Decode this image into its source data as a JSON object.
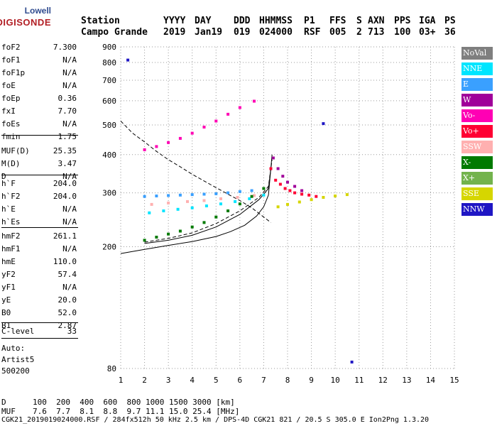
{
  "logo": {
    "line1": "Lowell",
    "line2": "DIGISONDE"
  },
  "header": {
    "columns": [
      {
        "label": "Station",
        "value": "Campo Grande"
      },
      {
        "label": "YYYY",
        "value": "2019"
      },
      {
        "label": "DAY",
        "value": "Jan19"
      },
      {
        "label": "DDD",
        "value": "019"
      },
      {
        "label": "HHMMSS",
        "value": "024000"
      },
      {
        "label": "P1",
        "value": "RSF"
      },
      {
        "label": "FFS",
        "value": "005"
      },
      {
        "label": "S",
        "value": "2"
      },
      {
        "label": "AXN",
        "value": "713"
      },
      {
        "label": "PPS",
        "value": "100"
      },
      {
        "label": "IGA",
        "value": "03+"
      },
      {
        "label": "PS",
        "value": "36"
      }
    ]
  },
  "params": {
    "group1": [
      {
        "name": "foF2",
        "value": "7.300"
      },
      {
        "name": "foF1",
        "value": "N/A"
      },
      {
        "name": "foF1p",
        "value": "N/A"
      },
      {
        "name": "foE",
        "value": "N/A"
      },
      {
        "name": "foEp",
        "value": "0.36"
      },
      {
        "name": "fxI",
        "value": "7.70"
      },
      {
        "name": "foEs",
        "value": "N/A"
      },
      {
        "name": "fmin",
        "value": "1.75"
      }
    ],
    "group2": [
      {
        "name": "MUF(D)",
        "value": "25.35"
      },
      {
        "name": "M(D)",
        "value": "3.47"
      },
      {
        "name": "D",
        "value": "N/A"
      }
    ],
    "group3": [
      {
        "name": "h`F",
        "value": "204.0"
      },
      {
        "name": "h`F2",
        "value": "204.0"
      },
      {
        "name": "h`E",
        "value": "N/A"
      },
      {
        "name": "h`Es",
        "value": "N/A"
      }
    ],
    "group4": [
      {
        "name": "hmF2",
        "value": "261.1"
      },
      {
        "name": "hmF1",
        "value": "N/A"
      },
      {
        "name": "hmE",
        "value": "110.0"
      },
      {
        "name": "yF2",
        "value": "57.4"
      },
      {
        "name": "yF1",
        "value": "N/A"
      },
      {
        "name": "yE",
        "value": "20.0"
      },
      {
        "name": "B0",
        "value": "52.0"
      },
      {
        "name": "B1",
        "value": "2.87"
      }
    ],
    "clevel": {
      "name": "C-level",
      "value": "33"
    },
    "auto": {
      "line1": "Auto:",
      "line2": "Artist5",
      "line3": "500200"
    }
  },
  "legend": [
    {
      "label": "NoVal",
      "color": "#7f7f7f"
    },
    {
      "label": "NNE",
      "color": "#00e5ff"
    },
    {
      "label": "E",
      "color": "#3aa0ff"
    },
    {
      "label": "W",
      "color": "#a0009a"
    },
    {
      "label": "Vo-",
      "color": "#ff00b4"
    },
    {
      "label": "Vo+",
      "color": "#ff0033"
    },
    {
      "label": "SSW",
      "color": "#ffb0b0"
    },
    {
      "label": "X-",
      "color": "#007a00"
    },
    {
      "label": "X+",
      "color": "#73b34d"
    },
    {
      "label": "SSE",
      "color": "#d6d600"
    },
    {
      "label": "NNW",
      "color": "#1f16c4"
    }
  ],
  "chart_data": {
    "type": "scatter",
    "title": "",
    "xlabel": "",
    "ylabel": "",
    "xlim": [
      1,
      15
    ],
    "ylim": [
      80,
      900
    ],
    "y_scale": "log",
    "xticks": [
      1,
      2,
      3,
      4,
      5,
      6,
      7,
      8,
      9,
      10,
      11,
      12,
      13,
      14,
      15
    ],
    "yticks": [
      80,
      200,
      300,
      400,
      500,
      600,
      700,
      800,
      900
    ],
    "grid": "dotted",
    "series": [
      {
        "color": "#ff00b4",
        "points": [
          [
            2.0,
            415
          ],
          [
            2.5,
            425
          ],
          [
            3.0,
            438
          ],
          [
            3.5,
            452
          ],
          [
            4.0,
            470
          ],
          [
            4.5,
            492
          ],
          [
            5.0,
            515
          ],
          [
            5.5,
            542
          ],
          [
            6.0,
            570
          ],
          [
            6.6,
            598
          ]
        ]
      },
      {
        "color": "#3aa0ff",
        "points": [
          [
            2.0,
            292
          ],
          [
            2.5,
            293
          ],
          [
            3.0,
            294
          ],
          [
            3.5,
            295
          ],
          [
            4.0,
            296
          ],
          [
            4.5,
            297
          ],
          [
            5.0,
            298
          ],
          [
            5.5,
            300
          ],
          [
            6.0,
            303
          ],
          [
            6.5,
            305
          ]
        ]
      },
      {
        "color": "#00e5ff",
        "points": [
          [
            2.2,
            258
          ],
          [
            2.8,
            262
          ],
          [
            3.4,
            265
          ],
          [
            4.0,
            268
          ],
          [
            4.6,
            272
          ],
          [
            5.2,
            276
          ],
          [
            5.8,
            281
          ],
          [
            6.4,
            287
          ],
          [
            7.0,
            295
          ]
        ]
      },
      {
        "color": "#ffb0b0",
        "points": [
          [
            2.3,
            275
          ],
          [
            3.0,
            278
          ],
          [
            3.8,
            281
          ],
          [
            4.5,
            283
          ],
          [
            5.2,
            287
          ],
          [
            5.9,
            290
          ],
          [
            6.6,
            294
          ]
        ]
      },
      {
        "color": "#007a00",
        "points": [
          [
            2.0,
            210
          ],
          [
            2.5,
            215
          ],
          [
            3.0,
            220
          ],
          [
            3.5,
            225
          ],
          [
            4.0,
            232
          ],
          [
            4.5,
            240
          ],
          [
            5.0,
            250
          ],
          [
            5.5,
            262
          ],
          [
            6.0,
            276
          ],
          [
            6.5,
            292
          ],
          [
            7.0,
            310
          ]
        ]
      },
      {
        "color": "#ff0033",
        "points": [
          [
            7.3,
            360
          ],
          [
            7.5,
            330
          ],
          [
            7.7,
            320
          ],
          [
            7.9,
            310
          ],
          [
            8.1,
            305
          ],
          [
            8.3,
            300
          ],
          [
            8.6,
            297
          ],
          [
            8.9,
            295
          ],
          [
            9.2,
            292
          ]
        ]
      },
      {
        "color": "#a0009a",
        "points": [
          [
            7.4,
            390
          ],
          [
            7.6,
            360
          ],
          [
            7.8,
            340
          ],
          [
            8.0,
            325
          ],
          [
            8.3,
            315
          ],
          [
            8.6,
            305
          ]
        ]
      },
      {
        "color": "#d6d600",
        "points": [
          [
            7.6,
            270
          ],
          [
            8.0,
            275
          ],
          [
            8.5,
            280
          ],
          [
            9.0,
            285
          ],
          [
            9.5,
            290
          ],
          [
            10.0,
            293
          ],
          [
            10.5,
            296
          ]
        ]
      },
      {
        "color": "#1f16c4",
        "points": [
          [
            1.3,
            815
          ],
          [
            10.7,
            84
          ],
          [
            9.5,
            505
          ]
        ]
      }
    ],
    "curves": [
      {
        "style": "dashed",
        "points": [
          [
            1.0,
            515
          ],
          [
            1.5,
            470
          ],
          [
            2.0,
            440
          ],
          [
            2.5,
            410
          ],
          [
            3.0,
            385
          ],
          [
            3.5,
            365
          ],
          [
            4.0,
            345
          ],
          [
            4.5,
            328
          ],
          [
            5.0,
            312
          ],
          [
            5.5,
            297
          ],
          [
            6.0,
            283
          ],
          [
            6.5,
            268
          ],
          [
            7.0,
            250
          ],
          [
            7.3,
            240
          ]
        ]
      },
      {
        "style": "dashed",
        "points": [
          [
            2.0,
            207
          ],
          [
            3.0,
            213
          ],
          [
            4.0,
            222
          ],
          [
            5.0,
            238
          ],
          [
            6.0,
            262
          ],
          [
            6.8,
            290
          ],
          [
            7.2,
            315
          ],
          [
            7.35,
            385
          ]
        ]
      },
      {
        "style": "solid",
        "points": [
          [
            1.0,
            190
          ],
          [
            2.0,
            196
          ],
          [
            3.0,
            202
          ],
          [
            4.0,
            208
          ],
          [
            5.0,
            216
          ],
          [
            5.6,
            224
          ],
          [
            6.2,
            235
          ],
          [
            6.7,
            252
          ],
          [
            7.0,
            270
          ],
          [
            7.2,
            295
          ],
          [
            7.35,
            400
          ]
        ]
      },
      {
        "style": "solid",
        "points": [
          [
            2.0,
            205
          ],
          [
            3.0,
            210
          ],
          [
            4.0,
            218
          ],
          [
            5.0,
            232
          ],
          [
            6.0,
            255
          ],
          [
            6.8,
            285
          ],
          [
            7.2,
            310
          ],
          [
            7.3,
            360
          ]
        ]
      }
    ]
  },
  "footer": {
    "row1_label": "D",
    "row1_values": "100  200  400  600  800 1000 1500 3000 [km]",
    "row2_label": "MUF",
    "row2_values": "7.6  7.7  8.1  8.8  9.7 11.1 15.0 25.4 [MHz]",
    "row3": "CGK21_2019019024000.RSF / 284fx512h 50 kHz 2.5 km / DPS-4D CGK21 821 / 20.5 S 305.0 E Ion2Png 1.3.20"
  }
}
